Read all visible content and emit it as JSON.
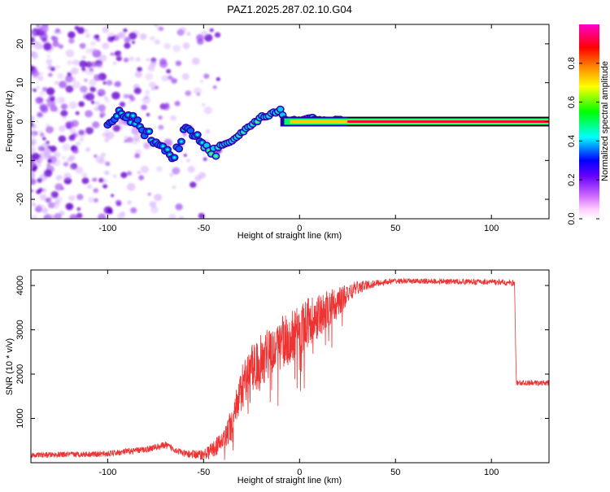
{
  "title": "PAZ1.2025.287.02.10.G04",
  "chart_data": [
    {
      "type": "heatmap",
      "name": "spectrogram",
      "xlabel": "Height of straight line (km)",
      "ylabel": "Frequency (Hz)",
      "xlim": [
        -140,
        130
      ],
      "ylim": [
        -25,
        25
      ],
      "x_ticks": [
        -100,
        -50,
        0,
        50,
        100
      ],
      "x_tick_labels": [
        "-100",
        "-50",
        "0",
        "50",
        "100"
      ],
      "y_ticks": [
        -20,
        -10,
        0,
        10,
        20
      ],
      "y_tick_labels": [
        "-20",
        "-10",
        "0",
        "10",
        "20"
      ],
      "ridge": {
        "x": [
          -100,
          -95,
          -90,
          -85,
          -80,
          -75,
          -70,
          -65,
          -60,
          -55,
          -50,
          -45,
          -42,
          -40,
          -35,
          -30,
          -25,
          -20,
          -15,
          -10,
          -8,
          -5,
          0,
          5,
          10,
          15,
          20,
          25,
          50,
          90,
          115,
          130
        ],
        "y": [
          -2,
          2,
          1.5,
          0,
          -3,
          -5,
          -7,
          -9,
          -2,
          -3,
          -6,
          -8,
          -7.5,
          -6,
          -5,
          -3,
          -1,
          1,
          2,
          3,
          1,
          0,
          0.5,
          1,
          0.5,
          0,
          0.5,
          0,
          0,
          0,
          0,
          0
        ]
      },
      "colorbar": {
        "label": "Normalized spectral amplitude",
        "range": [
          0.0,
          1.0
        ],
        "ticks": [
          0.0,
          0.2,
          0.4,
          0.6,
          0.8
        ],
        "tick_labels": [
          "0.0",
          "0.2",
          "0.4",
          "0.6",
          "0.8"
        ],
        "colormap": [
          "#ffffff",
          "#cc99ff",
          "#6600cc",
          "#0000ff",
          "#00ffff",
          "#00ff00",
          "#ffff00",
          "#ff8800",
          "#ff0000",
          "#ff00cc"
        ]
      }
    },
    {
      "type": "line",
      "name": "snr",
      "xlabel": "Height of straight line (km)",
      "ylabel": "SNR (10 * v/v)",
      "xlim": [
        -140,
        130
      ],
      "ylim": [
        0,
        4350
      ],
      "x_ticks": [
        -100,
        -50,
        0,
        50,
        100
      ],
      "x_tick_labels": [
        "-100",
        "-50",
        "0",
        "50",
        "100"
      ],
      "y_ticks": [
        1000,
        2000,
        3000,
        4000
      ],
      "y_tick_labels": [
        "1000",
        "2000",
        "3000",
        "4000"
      ],
      "color": "#ee3333",
      "profile": {
        "x": [
          -140,
          -100,
          -80,
          -70,
          -60,
          -50,
          -45,
          -40,
          -35,
          -30,
          -25,
          -20,
          -15,
          -10,
          -5,
          0,
          5,
          10,
          15,
          20,
          25,
          30,
          35,
          40,
          45,
          50,
          100,
          112,
          113,
          130
        ],
        "y": [
          170,
          200,
          300,
          400,
          200,
          180,
          300,
          500,
          900,
          1700,
          2100,
          2300,
          2600,
          2700,
          2800,
          3000,
          3200,
          3300,
          3500,
          3600,
          3800,
          3950,
          4000,
          4050,
          4080,
          4100,
          4080,
          4050,
          1800,
          1800
        ]
      },
      "noise_amplitude": {
        "x": [
          -140,
          -60,
          -50,
          -40,
          -30,
          -20,
          -10,
          0,
          10,
          20,
          30,
          40,
          50,
          112,
          113,
          130
        ],
        "y": [
          60,
          80,
          120,
          250,
          500,
          600,
          600,
          600,
          500,
          350,
          150,
          80,
          60,
          70,
          60,
          60
        ]
      }
    }
  ]
}
